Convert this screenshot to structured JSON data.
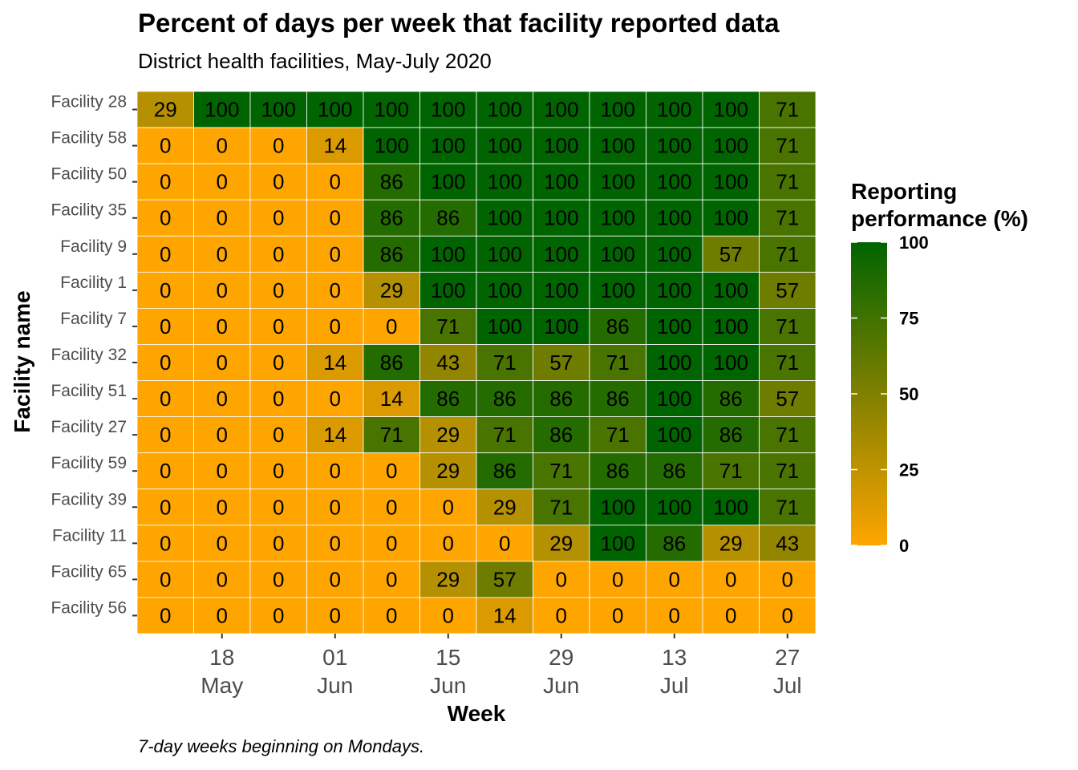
{
  "chart_data": {
    "type": "heatmap",
    "title": "Percent of days per week that facility reported data",
    "subtitle": "District health facilities, May-July 2020",
    "caption": "7-day weeks beginning on Mondays.",
    "xlabel": "Week",
    "ylabel": "Facility name",
    "x_tick_labels": [
      {
        "day": "18",
        "month": "May"
      },
      {
        "day": "01",
        "month": "Jun"
      },
      {
        "day": "15",
        "month": "Jun"
      },
      {
        "day": "29",
        "month": "Jun"
      },
      {
        "day": "13",
        "month": "Jul"
      },
      {
        "day": "27",
        "month": "Jul"
      }
    ],
    "weeks": [
      "2020-05-11",
      "2020-05-18",
      "2020-05-25",
      "2020-06-01",
      "2020-06-08",
      "2020-06-15",
      "2020-06-22",
      "2020-06-29",
      "2020-07-06",
      "2020-07-13",
      "2020-07-20",
      "2020-07-27"
    ],
    "facilities": [
      "Facility 28",
      "Facility 58",
      "Facility 50",
      "Facility 35",
      "Facility 9",
      "Facility 1",
      "Facility 7",
      "Facility 32",
      "Facility 51",
      "Facility 27",
      "Facility 59",
      "Facility 39",
      "Facility 11",
      "Facility 65",
      "Facility 56"
    ],
    "values": [
      [
        29,
        100,
        100,
        100,
        100,
        100,
        100,
        100,
        100,
        100,
        100,
        71
      ],
      [
        0,
        0,
        0,
        14,
        100,
        100,
        100,
        100,
        100,
        100,
        100,
        71
      ],
      [
        0,
        0,
        0,
        0,
        86,
        100,
        100,
        100,
        100,
        100,
        100,
        71
      ],
      [
        0,
        0,
        0,
        0,
        86,
        86,
        100,
        100,
        100,
        100,
        100,
        71
      ],
      [
        0,
        0,
        0,
        0,
        86,
        100,
        100,
        100,
        100,
        100,
        57,
        71
      ],
      [
        0,
        0,
        0,
        0,
        29,
        100,
        100,
        100,
        100,
        100,
        100,
        57
      ],
      [
        0,
        0,
        0,
        0,
        0,
        71,
        100,
        100,
        86,
        100,
        100,
        71
      ],
      [
        0,
        0,
        0,
        14,
        86,
        43,
        71,
        57,
        71,
        100,
        100,
        71
      ],
      [
        0,
        0,
        0,
        0,
        14,
        86,
        86,
        86,
        86,
        100,
        86,
        57
      ],
      [
        0,
        0,
        0,
        14,
        71,
        29,
        71,
        86,
        71,
        100,
        86,
        71
      ],
      [
        0,
        0,
        0,
        0,
        0,
        29,
        86,
        71,
        86,
        86,
        71,
        71
      ],
      [
        0,
        0,
        0,
        0,
        0,
        0,
        29,
        71,
        100,
        100,
        100,
        71
      ],
      [
        0,
        0,
        0,
        0,
        0,
        0,
        0,
        29,
        100,
        86,
        29,
        43
      ],
      [
        0,
        0,
        0,
        0,
        0,
        29,
        57,
        0,
        0,
        0,
        0,
        0
      ],
      [
        0,
        0,
        0,
        0,
        0,
        0,
        14,
        0,
        0,
        0,
        0,
        0
      ]
    ],
    "legend": {
      "title_line1": "Reporting",
      "title_line2": "performance (%)",
      "ticks": [
        "100",
        "75",
        "50",
        "25",
        "0"
      ],
      "position": "right"
    },
    "colors": {
      "low": "#FFA500",
      "mid": "#808000",
      "high": "#006400",
      "grid": "#ffffff"
    },
    "value_range": [
      0,
      100
    ]
  }
}
